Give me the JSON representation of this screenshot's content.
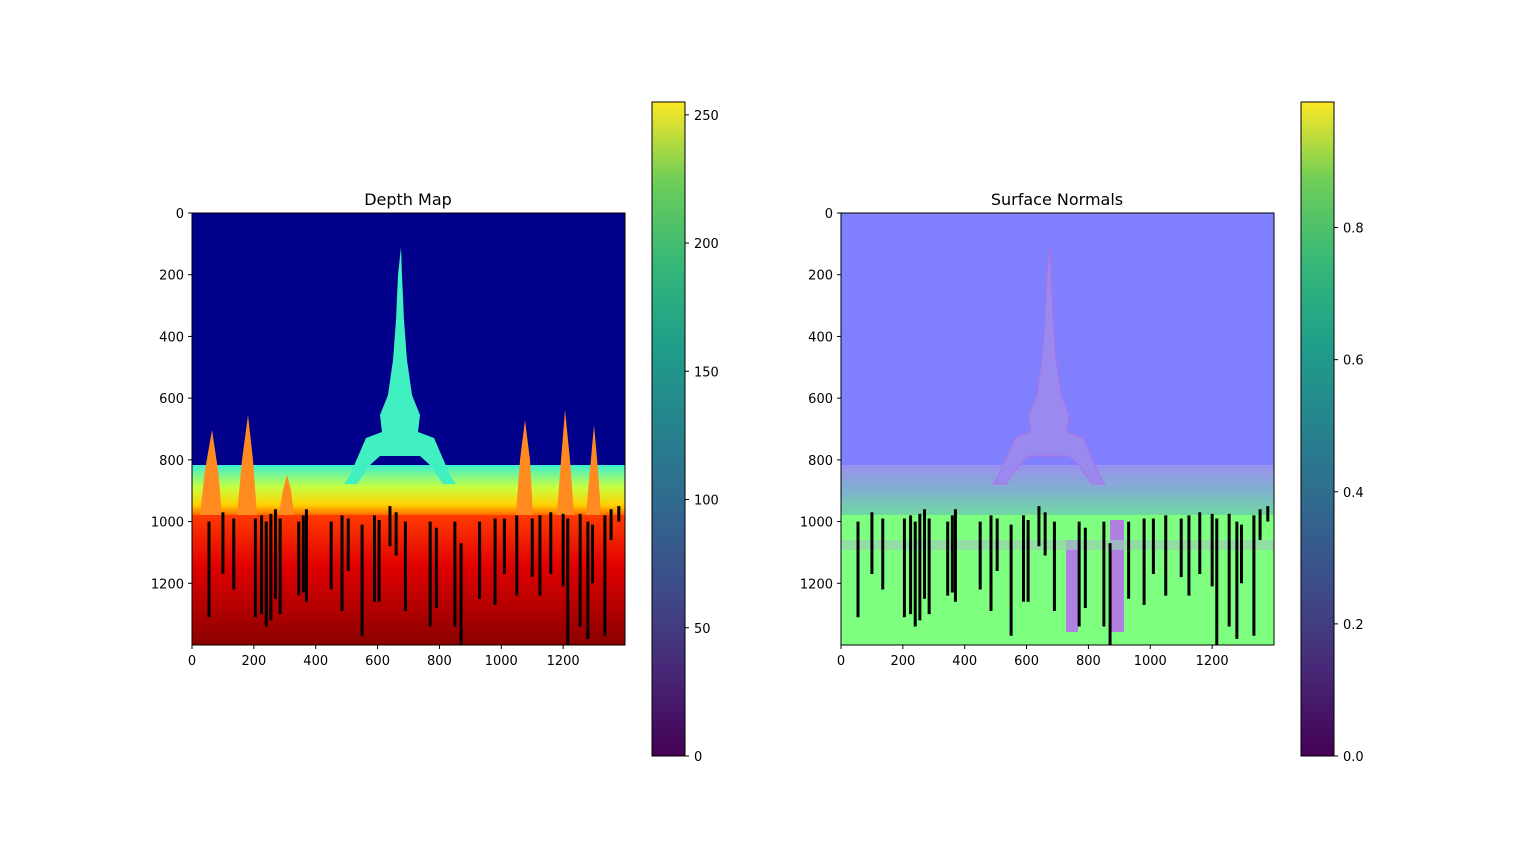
{
  "chart_data": [
    {
      "type": "heatmap",
      "title": "Depth Map",
      "xlabel": "",
      "ylabel": "",
      "xlim": [
        0,
        1400
      ],
      "ylim": [
        1400,
        0
      ],
      "image_height": 1400,
      "xticks": [
        0,
        200,
        400,
        600,
        800,
        1000,
        1200
      ],
      "yticks": [
        0,
        200,
        400,
        600,
        800,
        1000,
        1200
      ],
      "colormap": "jet",
      "colorbar": {
        "colormap": "viridis",
        "range": [
          0,
          255
        ],
        "ticks": [
          0,
          50,
          100,
          150,
          200,
          250
        ]
      },
      "horizon_y": 830,
      "ground_y": 970,
      "vertical_lines": [
        {
          "x": 55,
          "y1": 1000,
          "y2": 1310
        },
        {
          "x": 100,
          "y1": 970,
          "y2": 1170
        },
        {
          "x": 135,
          "y1": 990,
          "y2": 1220
        },
        {
          "x": 205,
          "y1": 990,
          "y2": 1310
        },
        {
          "x": 225,
          "y1": 980,
          "y2": 1300
        },
        {
          "x": 240,
          "y1": 1000,
          "y2": 1340
        },
        {
          "x": 255,
          "y1": 975,
          "y2": 1320
        },
        {
          "x": 270,
          "y1": 960,
          "y2": 1250
        },
        {
          "x": 285,
          "y1": 990,
          "y2": 1300
        },
        {
          "x": 345,
          "y1": 1000,
          "y2": 1240
        },
        {
          "x": 360,
          "y1": 980,
          "y2": 1230
        },
        {
          "x": 370,
          "y1": 960,
          "y2": 1260
        },
        {
          "x": 450,
          "y1": 1000,
          "y2": 1220
        },
        {
          "x": 485,
          "y1": 980,
          "y2": 1290
        },
        {
          "x": 505,
          "y1": 990,
          "y2": 1160
        },
        {
          "x": 550,
          "y1": 1010,
          "y2": 1370
        },
        {
          "x": 590,
          "y1": 980,
          "y2": 1260
        },
        {
          "x": 605,
          "y1": 995,
          "y2": 1260
        },
        {
          "x": 640,
          "y1": 950,
          "y2": 1080
        },
        {
          "x": 660,
          "y1": 970,
          "y2": 1110
        },
        {
          "x": 690,
          "y1": 1000,
          "y2": 1290
        },
        {
          "x": 770,
          "y1": 1000,
          "y2": 1340
        },
        {
          "x": 790,
          "y1": 1020,
          "y2": 1280
        },
        {
          "x": 850,
          "y1": 1000,
          "y2": 1340
        },
        {
          "x": 870,
          "y1": 1070,
          "y2": 1400
        },
        {
          "x": 930,
          "y1": 1000,
          "y2": 1250
        },
        {
          "x": 980,
          "y1": 990,
          "y2": 1270
        },
        {
          "x": 1010,
          "y1": 990,
          "y2": 1170
        },
        {
          "x": 1050,
          "y1": 980,
          "y2": 1240
        },
        {
          "x": 1100,
          "y1": 990,
          "y2": 1180
        },
        {
          "x": 1125,
          "y1": 980,
          "y2": 1240
        },
        {
          "x": 1160,
          "y1": 970,
          "y2": 1170
        },
        {
          "x": 1200,
          "y1": 975,
          "y2": 1210
        },
        {
          "x": 1215,
          "y1": 990,
          "y2": 1400
        },
        {
          "x": 1255,
          "y1": 975,
          "y2": 1340
        },
        {
          "x": 1280,
          "y1": 1000,
          "y2": 1380
        },
        {
          "x": 1295,
          "y1": 1010,
          "y2": 1200
        },
        {
          "x": 1335,
          "y1": 980,
          "y2": 1370
        },
        {
          "x": 1355,
          "y1": 960,
          "y2": 1060
        },
        {
          "x": 1380,
          "y1": 950,
          "y2": 1000
        }
      ]
    },
    {
      "type": "heatmap",
      "title": "Surface Normals",
      "xlabel": "",
      "ylabel": "",
      "xlim": [
        0,
        1400
      ],
      "ylim": [
        1400,
        0
      ],
      "image_height": 1400,
      "xticks": [
        0,
        200,
        400,
        600,
        800,
        1000,
        1200
      ],
      "yticks": [
        0,
        200,
        400,
        600,
        800,
        1000,
        1200
      ],
      "colormap": "rgb-normals",
      "colorbar": {
        "colormap": "viridis",
        "range": [
          0,
          0.99
        ],
        "ticks": [
          0.0,
          0.2,
          0.4,
          0.6,
          0.8
        ]
      },
      "horizon_y": 830,
      "ground_y": 970,
      "vertical_lines": [
        {
          "x": 55,
          "y1": 1000,
          "y2": 1310
        },
        {
          "x": 100,
          "y1": 970,
          "y2": 1170
        },
        {
          "x": 135,
          "y1": 990,
          "y2": 1220
        },
        {
          "x": 205,
          "y1": 990,
          "y2": 1310
        },
        {
          "x": 225,
          "y1": 980,
          "y2": 1300
        },
        {
          "x": 240,
          "y1": 1000,
          "y2": 1340
        },
        {
          "x": 255,
          "y1": 975,
          "y2": 1320
        },
        {
          "x": 270,
          "y1": 960,
          "y2": 1250
        },
        {
          "x": 285,
          "y1": 990,
          "y2": 1300
        },
        {
          "x": 345,
          "y1": 1000,
          "y2": 1240
        },
        {
          "x": 360,
          "y1": 980,
          "y2": 1230
        },
        {
          "x": 370,
          "y1": 960,
          "y2": 1260
        },
        {
          "x": 450,
          "y1": 1000,
          "y2": 1220
        },
        {
          "x": 485,
          "y1": 980,
          "y2": 1290
        },
        {
          "x": 505,
          "y1": 990,
          "y2": 1160
        },
        {
          "x": 550,
          "y1": 1010,
          "y2": 1370
        },
        {
          "x": 590,
          "y1": 980,
          "y2": 1260
        },
        {
          "x": 605,
          "y1": 995,
          "y2": 1260
        },
        {
          "x": 640,
          "y1": 950,
          "y2": 1080
        },
        {
          "x": 660,
          "y1": 970,
          "y2": 1110
        },
        {
          "x": 690,
          "y1": 1000,
          "y2": 1290
        },
        {
          "x": 770,
          "y1": 1000,
          "y2": 1340
        },
        {
          "x": 790,
          "y1": 1020,
          "y2": 1280
        },
        {
          "x": 850,
          "y1": 1000,
          "y2": 1340
        },
        {
          "x": 870,
          "y1": 1070,
          "y2": 1400
        },
        {
          "x": 930,
          "y1": 1000,
          "y2": 1250
        },
        {
          "x": 980,
          "y1": 990,
          "y2": 1270
        },
        {
          "x": 1010,
          "y1": 990,
          "y2": 1170
        },
        {
          "x": 1050,
          "y1": 980,
          "y2": 1240
        },
        {
          "x": 1100,
          "y1": 990,
          "y2": 1180
        },
        {
          "x": 1125,
          "y1": 980,
          "y2": 1240
        },
        {
          "x": 1160,
          "y1": 970,
          "y2": 1170
        },
        {
          "x": 1200,
          "y1": 975,
          "y2": 1210
        },
        {
          "x": 1215,
          "y1": 990,
          "y2": 1400
        },
        {
          "x": 1255,
          "y1": 975,
          "y2": 1340
        },
        {
          "x": 1280,
          "y1": 1000,
          "y2": 1380
        },
        {
          "x": 1295,
          "y1": 1010,
          "y2": 1200
        },
        {
          "x": 1335,
          "y1": 980,
          "y2": 1370
        },
        {
          "x": 1355,
          "y1": 960,
          "y2": 1060
        },
        {
          "x": 1380,
          "y1": 950,
          "y2": 1000
        }
      ]
    }
  ],
  "colors": {
    "line": "#000000",
    "depth_sky": "#00008b",
    "depth_ground_top": "#ff2a00",
    "depth_ground_bottom": "#8b0000",
    "normals_sky": "#8080ff",
    "normals_ground": "#7fff7f"
  }
}
